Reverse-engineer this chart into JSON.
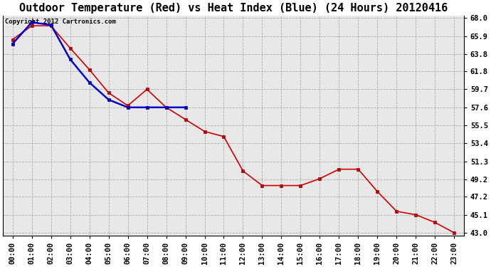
{
  "title": "Outdoor Temperature (Red) vs Heat Index (Blue) (24 Hours) 20120416",
  "copyright_text": "Copyright 2012 Cartronics.com",
  "x_labels": [
    "00:00",
    "01:00",
    "02:00",
    "03:00",
    "04:00",
    "05:00",
    "06:00",
    "07:00",
    "08:00",
    "09:00",
    "10:00",
    "11:00",
    "12:00",
    "13:00",
    "14:00",
    "15:00",
    "16:00",
    "17:00",
    "18:00",
    "19:00",
    "20:00",
    "21:00",
    "22:00",
    "23:00"
  ],
  "temp_red": [
    65.5,
    67.1,
    67.1,
    64.5,
    62.0,
    59.3,
    57.8,
    59.7,
    57.6,
    56.2,
    54.8,
    54.2,
    50.2,
    48.5,
    48.5,
    48.5,
    49.3,
    50.4,
    50.4,
    47.8,
    45.5,
    45.1,
    44.2,
    43.0
  ],
  "heat_blue": [
    65.0,
    67.5,
    67.2,
    63.2,
    60.5,
    58.5,
    57.6,
    57.6,
    57.6,
    57.6,
    null,
    null,
    null,
    null,
    null,
    null,
    null,
    null,
    null,
    null,
    null,
    null,
    null,
    null
  ],
  "ylim_min": 43.0,
  "ylim_max": 68.0,
  "yticks": [
    43.0,
    45.1,
    47.2,
    49.2,
    51.3,
    53.4,
    55.5,
    57.6,
    59.7,
    61.8,
    63.8,
    65.9,
    68.0
  ],
  "bg_color": "#ffffff",
  "plot_bg_color": "#e8e8e8",
  "grid_color": "#aaaaaa",
  "red_color": "#cc0000",
  "blue_color": "#0000cc",
  "title_fontsize": 11,
  "tick_fontsize": 7.5,
  "copyright_fontsize": 6.5
}
